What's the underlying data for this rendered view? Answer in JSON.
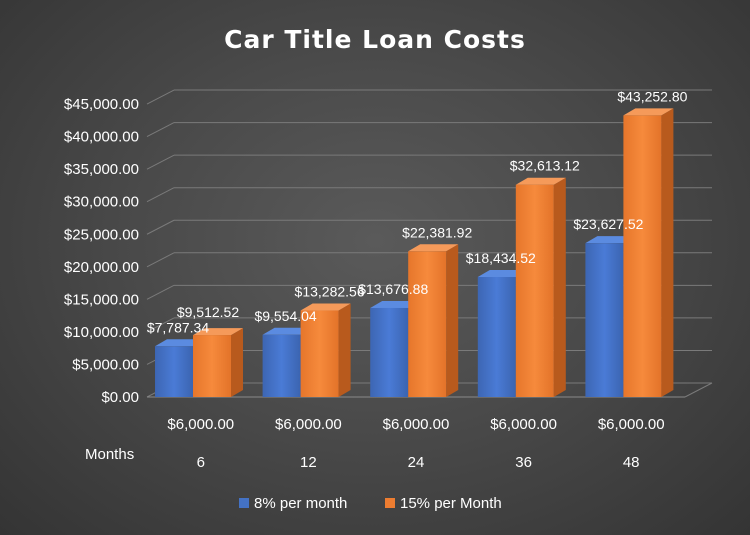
{
  "chart_data": {
    "type": "bar",
    "title": "Car Title Loan Costs",
    "category_group_label": "Months",
    "categories": [
      "6",
      "12",
      "24",
      "36",
      "48"
    ],
    "principal_labels": [
      "$6,000.00",
      "$6,000.00",
      "$6,000.00",
      "$6,000.00",
      "$6,000.00"
    ],
    "series": [
      {
        "name": "8% per month",
        "color": "#4472c4",
        "values": [
          7787.34,
          9554.04,
          13676.88,
          18434.52,
          23627.52
        ],
        "labels": [
          "$7,787.34",
          "$9,554.04",
          "$13,676.88",
          "$18,434.52",
          "$23,627.52"
        ]
      },
      {
        "name": "15% per Month",
        "color": "#ed7d31",
        "values": [
          9512.52,
          13282.56,
          22381.92,
          32613.12,
          43252.8
        ],
        "labels": [
          "$9,512.52",
          "$13,282.56",
          "$22,381.92",
          "$32,613.12",
          "$43,252.80"
        ]
      }
    ],
    "ylim": [
      0,
      45000
    ],
    "y_ticks": [
      0,
      5000,
      10000,
      15000,
      20000,
      25000,
      30000,
      35000,
      40000,
      45000
    ],
    "y_tick_labels": [
      "$0.00",
      "$5,000.00",
      "$10,000.00",
      "$15,000.00",
      "$20,000.00",
      "$25,000.00",
      "$30,000.00",
      "$35,000.00",
      "$40,000.00",
      "$45,000.00"
    ],
    "grid": true,
    "legend": "bottom",
    "style": "3d-clustered-column"
  }
}
